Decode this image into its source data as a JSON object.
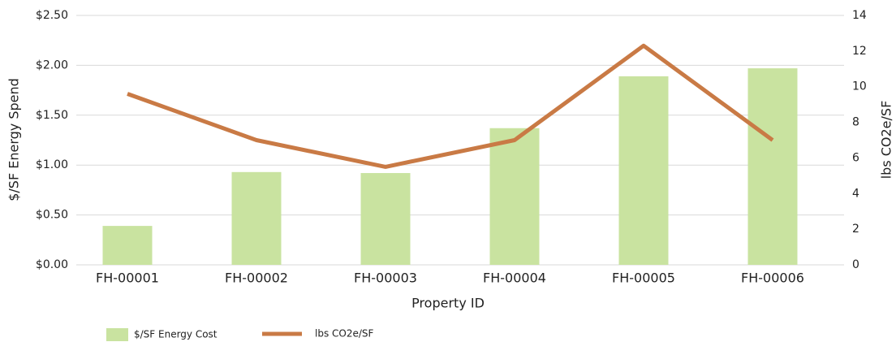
{
  "chart_data": {
    "type": "bar_line",
    "categories": [
      "FH-00001",
      "FH-00002",
      "FH-00003",
      "FH-00004",
      "FH-00005",
      "FH-00006"
    ],
    "series": [
      {
        "name": "$/SF Energy Cost",
        "type": "bar",
        "color": "#c9e3a0",
        "values": [
          0.39,
          0.93,
          0.92,
          1.37,
          1.89,
          1.97
        ]
      },
      {
        "name": "lbs CO2e/SF",
        "type": "line",
        "axis": "y2",
        "color": "#c97a45",
        "values": [
          9.6,
          7.0,
          5.5,
          7.0,
          12.3,
          7.0
        ]
      }
    ],
    "xlabel": "Property ID",
    "ylabel": "$/SF Energy Spend",
    "y2label": "lbs CO2e/SF",
    "ylim": [
      0,
      2.5
    ],
    "yticks": [
      {
        "value": 0,
        "label": "$0.00"
      },
      {
        "value": 0.5,
        "label": "$0.50"
      },
      {
        "value": 1,
        "label": "$1.00"
      },
      {
        "value": 1.5,
        "label": "$1.50"
      },
      {
        "value": 2,
        "label": "$2.00"
      },
      {
        "value": 2.5,
        "label": "$2.50"
      }
    ],
    "y2lim": [
      0,
      14
    ],
    "y2ticks": [
      0,
      2,
      4,
      6,
      8,
      10,
      12,
      14
    ],
    "grid": true,
    "legend": "bottom-left"
  }
}
